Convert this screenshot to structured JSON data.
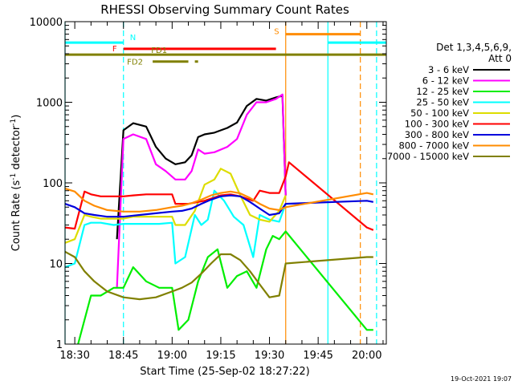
{
  "chart_data": {
    "type": "line",
    "title": "RHESSI Observing Summary Count Rates",
    "xlabel": "Start Time (25-Sep-02 18:27:22)",
    "ylabel_main": "Count Rate (s",
    "ylabel_sup1": "-1",
    "ylabel_mid": " detector",
    "ylabel_sup2": "-1",
    "ylabel_end": ")",
    "yscale": "log",
    "ylim": [
      1,
      10000
    ],
    "xlim": [
      "18:27",
      "20:06"
    ],
    "x_ticks": [
      "18:30",
      "18:45",
      "19:00",
      "19:15",
      "19:30",
      "19:45",
      "20:00"
    ],
    "y_ticks": [
      "1",
      "10",
      "100",
      "1000",
      "10000"
    ],
    "legend_header": [
      "Det 1,3,4,5,6,9,",
      "Att 0"
    ],
    "legend_placement": "right",
    "series": [
      {
        "name": "3 - 6 keV",
        "color": "#000000",
        "x": [
          "18:43",
          "18:45",
          "18:48",
          "18:52",
          "18:55",
          "18:58",
          "19:01",
          "19:04",
          "19:06",
          "19:08",
          "19:10",
          "19:13",
          "19:17",
          "19:20",
          "19:23",
          "19:26",
          "19:29",
          "19:32",
          "19:34",
          "19:35"
        ],
        "y": [
          20,
          450,
          550,
          500,
          280,
          200,
          170,
          180,
          220,
          370,
          400,
          420,
          480,
          560,
          900,
          1100,
          1050,
          1150,
          1200,
          70
        ]
      },
      {
        "name": "6 - 12 keV",
        "color": "#ff00ff",
        "x": [
          "18:43",
          "18:45",
          "18:48",
          "18:52",
          "18:55",
          "18:58",
          "19:01",
          "19:04",
          "19:06",
          "19:08",
          "19:10",
          "19:13",
          "19:17",
          "19:20",
          "19:23",
          "19:26",
          "19:29",
          "19:32",
          "19:34",
          "19:35"
        ],
        "y": [
          5,
          350,
          400,
          350,
          170,
          140,
          110,
          110,
          140,
          260,
          230,
          240,
          280,
          350,
          700,
          1000,
          1000,
          1100,
          1250,
          70
        ]
      },
      {
        "name": "12 - 25 keV",
        "color": "#00ee00",
        "x": [
          "18:31",
          "18:35",
          "18:38",
          "18:42",
          "18:45",
          "18:48",
          "18:52",
          "18:56",
          "19:00",
          "19:02",
          "19:05",
          "19:08",
          "19:11",
          "19:14",
          "19:17",
          "19:20",
          "19:23",
          "19:26",
          "19:29",
          "19:31",
          "19:33",
          "19:35",
          "20:00",
          "20:02"
        ],
        "y": [
          1,
          4,
          4,
          5,
          5,
          9,
          6,
          5,
          5,
          1.5,
          2,
          6,
          12,
          15,
          5,
          7,
          8,
          5,
          15,
          22,
          20,
          25,
          1.5,
          1.5
        ]
      },
      {
        "name": "25 - 50 keV",
        "color": "#00ffff",
        "x": [
          "18:27",
          "18:30",
          "18:33",
          "18:35",
          "18:38",
          "18:42",
          "18:45",
          "18:48",
          "18:52",
          "18:56",
          "19:00",
          "19:01",
          "19:04",
          "19:07",
          "19:09",
          "19:11",
          "19:13",
          "19:16",
          "19:19",
          "19:22",
          "19:25",
          "19:27",
          "19:30",
          "19:33",
          "19:35"
        ],
        "y": [
          9,
          10,
          30,
          32,
          32,
          30,
          31,
          31,
          31,
          31,
          32,
          10,
          12,
          40,
          30,
          35,
          80,
          60,
          38,
          30,
          12,
          40,
          35,
          33,
          55
        ]
      },
      {
        "name": "50 - 100 keV",
        "color": "#dddd00",
        "x": [
          "18:27",
          "18:30",
          "18:33",
          "18:35",
          "18:38",
          "18:42",
          "18:45",
          "18:48",
          "18:52",
          "18:56",
          "19:00",
          "19:01",
          "19:04",
          "19:07",
          "19:10",
          "19:13",
          "19:15",
          "19:18",
          "19:21",
          "19:24",
          "19:27",
          "19:30",
          "19:33",
          "19:35"
        ],
        "y": [
          18,
          20,
          40,
          38,
          36,
          36,
          36,
          38,
          38,
          38,
          38,
          30,
          30,
          45,
          95,
          110,
          150,
          130,
          70,
          40,
          35,
          33,
          45,
          70
        ]
      },
      {
        "name": "100 - 300 keV",
        "color": "#ff0000",
        "x": [
          "18:27",
          "18:30",
          "18:33",
          "18:35",
          "18:38",
          "18:42",
          "18:45",
          "18:48",
          "18:52",
          "18:56",
          "19:00",
          "19:01",
          "19:05",
          "19:10",
          "19:15",
          "19:18",
          "19:21",
          "19:25",
          "19:27",
          "19:30",
          "19:33",
          "19:35",
          "19:36",
          "20:00",
          "20:02"
        ],
        "y": [
          28,
          27,
          78,
          72,
          68,
          68,
          68,
          70,
          72,
          72,
          72,
          55,
          55,
          60,
          70,
          72,
          68,
          60,
          80,
          75,
          75,
          120,
          180,
          28,
          26
        ]
      },
      {
        "name": "300 - 800 keV",
        "color": "#0000dd",
        "x": [
          "18:27",
          "18:30",
          "18:33",
          "18:36",
          "18:40",
          "18:45",
          "18:50",
          "18:55",
          "19:00",
          "19:03",
          "19:06",
          "19:09",
          "19:12",
          "19:15",
          "19:18",
          "19:21",
          "19:24",
          "19:27",
          "19:30",
          "19:33",
          "19:35",
          "20:00",
          "20:02"
        ],
        "y": [
          55,
          50,
          42,
          40,
          38,
          38,
          40,
          42,
          44,
          45,
          48,
          55,
          62,
          68,
          70,
          68,
          58,
          48,
          40,
          42,
          55,
          60,
          58
        ]
      },
      {
        "name": "800 - 7000 keV",
        "color": "#ff8c00",
        "x": [
          "18:27",
          "18:30",
          "18:33",
          "18:36",
          "18:40",
          "18:45",
          "18:50",
          "18:55",
          "19:00",
          "19:03",
          "19:06",
          "19:09",
          "19:12",
          "19:15",
          "19:18",
          "19:21",
          "19:24",
          "19:27",
          "19:30",
          "19:33",
          "19:35",
          "20:00",
          "20:02"
        ],
        "y": [
          85,
          78,
          60,
          52,
          46,
          44,
          44,
          46,
          50,
          52,
          56,
          62,
          70,
          75,
          78,
          74,
          65,
          55,
          48,
          46,
          50,
          75,
          72
        ]
      },
      {
        "name": "7000 - 15000 keV",
        "color": "#808000",
        "x": [
          "18:27",
          "18:30",
          "18:33",
          "18:36",
          "18:40",
          "18:45",
          "18:50",
          "18:55",
          "19:00",
          "19:03",
          "19:06",
          "19:09",
          "19:12",
          "19:15",
          "19:18",
          "19:21",
          "19:24",
          "19:27",
          "19:30",
          "19:33",
          "19:35",
          "20:00",
          "20:02"
        ],
        "y": [
          14,
          12,
          8,
          6,
          4.5,
          3.8,
          3.6,
          3.8,
          4.5,
          5,
          5.8,
          7.5,
          10,
          13,
          13,
          11,
          8,
          5.5,
          3.8,
          4,
          10,
          12,
          12
        ]
      }
    ],
    "verticals": [
      {
        "x": "18:27",
        "color": "#00ffff",
        "style": "solid"
      },
      {
        "x": "18:45",
        "color": "#00ffff",
        "style": "dashed"
      },
      {
        "x": "19:35",
        "color": "#ff8c00",
        "style": "solid"
      },
      {
        "x": "19:48",
        "color": "#00ffff",
        "style": "solid"
      },
      {
        "x": "19:58",
        "color": "#ff8c00",
        "style": "dashed"
      },
      {
        "x": "20:03",
        "color": "#00ffff",
        "style": "dashed"
      }
    ],
    "flag_bars": [
      {
        "label": "N",
        "color": "#00ffff",
        "y": 5500,
        "segments": [
          [
            "18:27",
            "18:45"
          ],
          [
            "19:48",
            "20:06"
          ]
        ]
      },
      {
        "label": "S",
        "color": "#ff8c00",
        "y": 7000,
        "segments": [
          [
            "19:35",
            "19:58"
          ]
        ]
      },
      {
        "label": "F",
        "color": "#ff0000",
        "y": 4600,
        "segments": [
          [
            "18:45",
            "19:32"
          ]
        ]
      },
      {
        "label": "FD1",
        "color": "#808000",
        "y": 3900,
        "segments": [
          [
            "18:27",
            "20:06"
          ]
        ]
      },
      {
        "label": "FD2",
        "color": "#808000",
        "y": 3200,
        "segments": [
          [
            "18:54",
            "19:05"
          ],
          [
            "19:07",
            "19:08"
          ]
        ]
      }
    ]
  },
  "footer_date": "19-Oct-2021 19:07"
}
